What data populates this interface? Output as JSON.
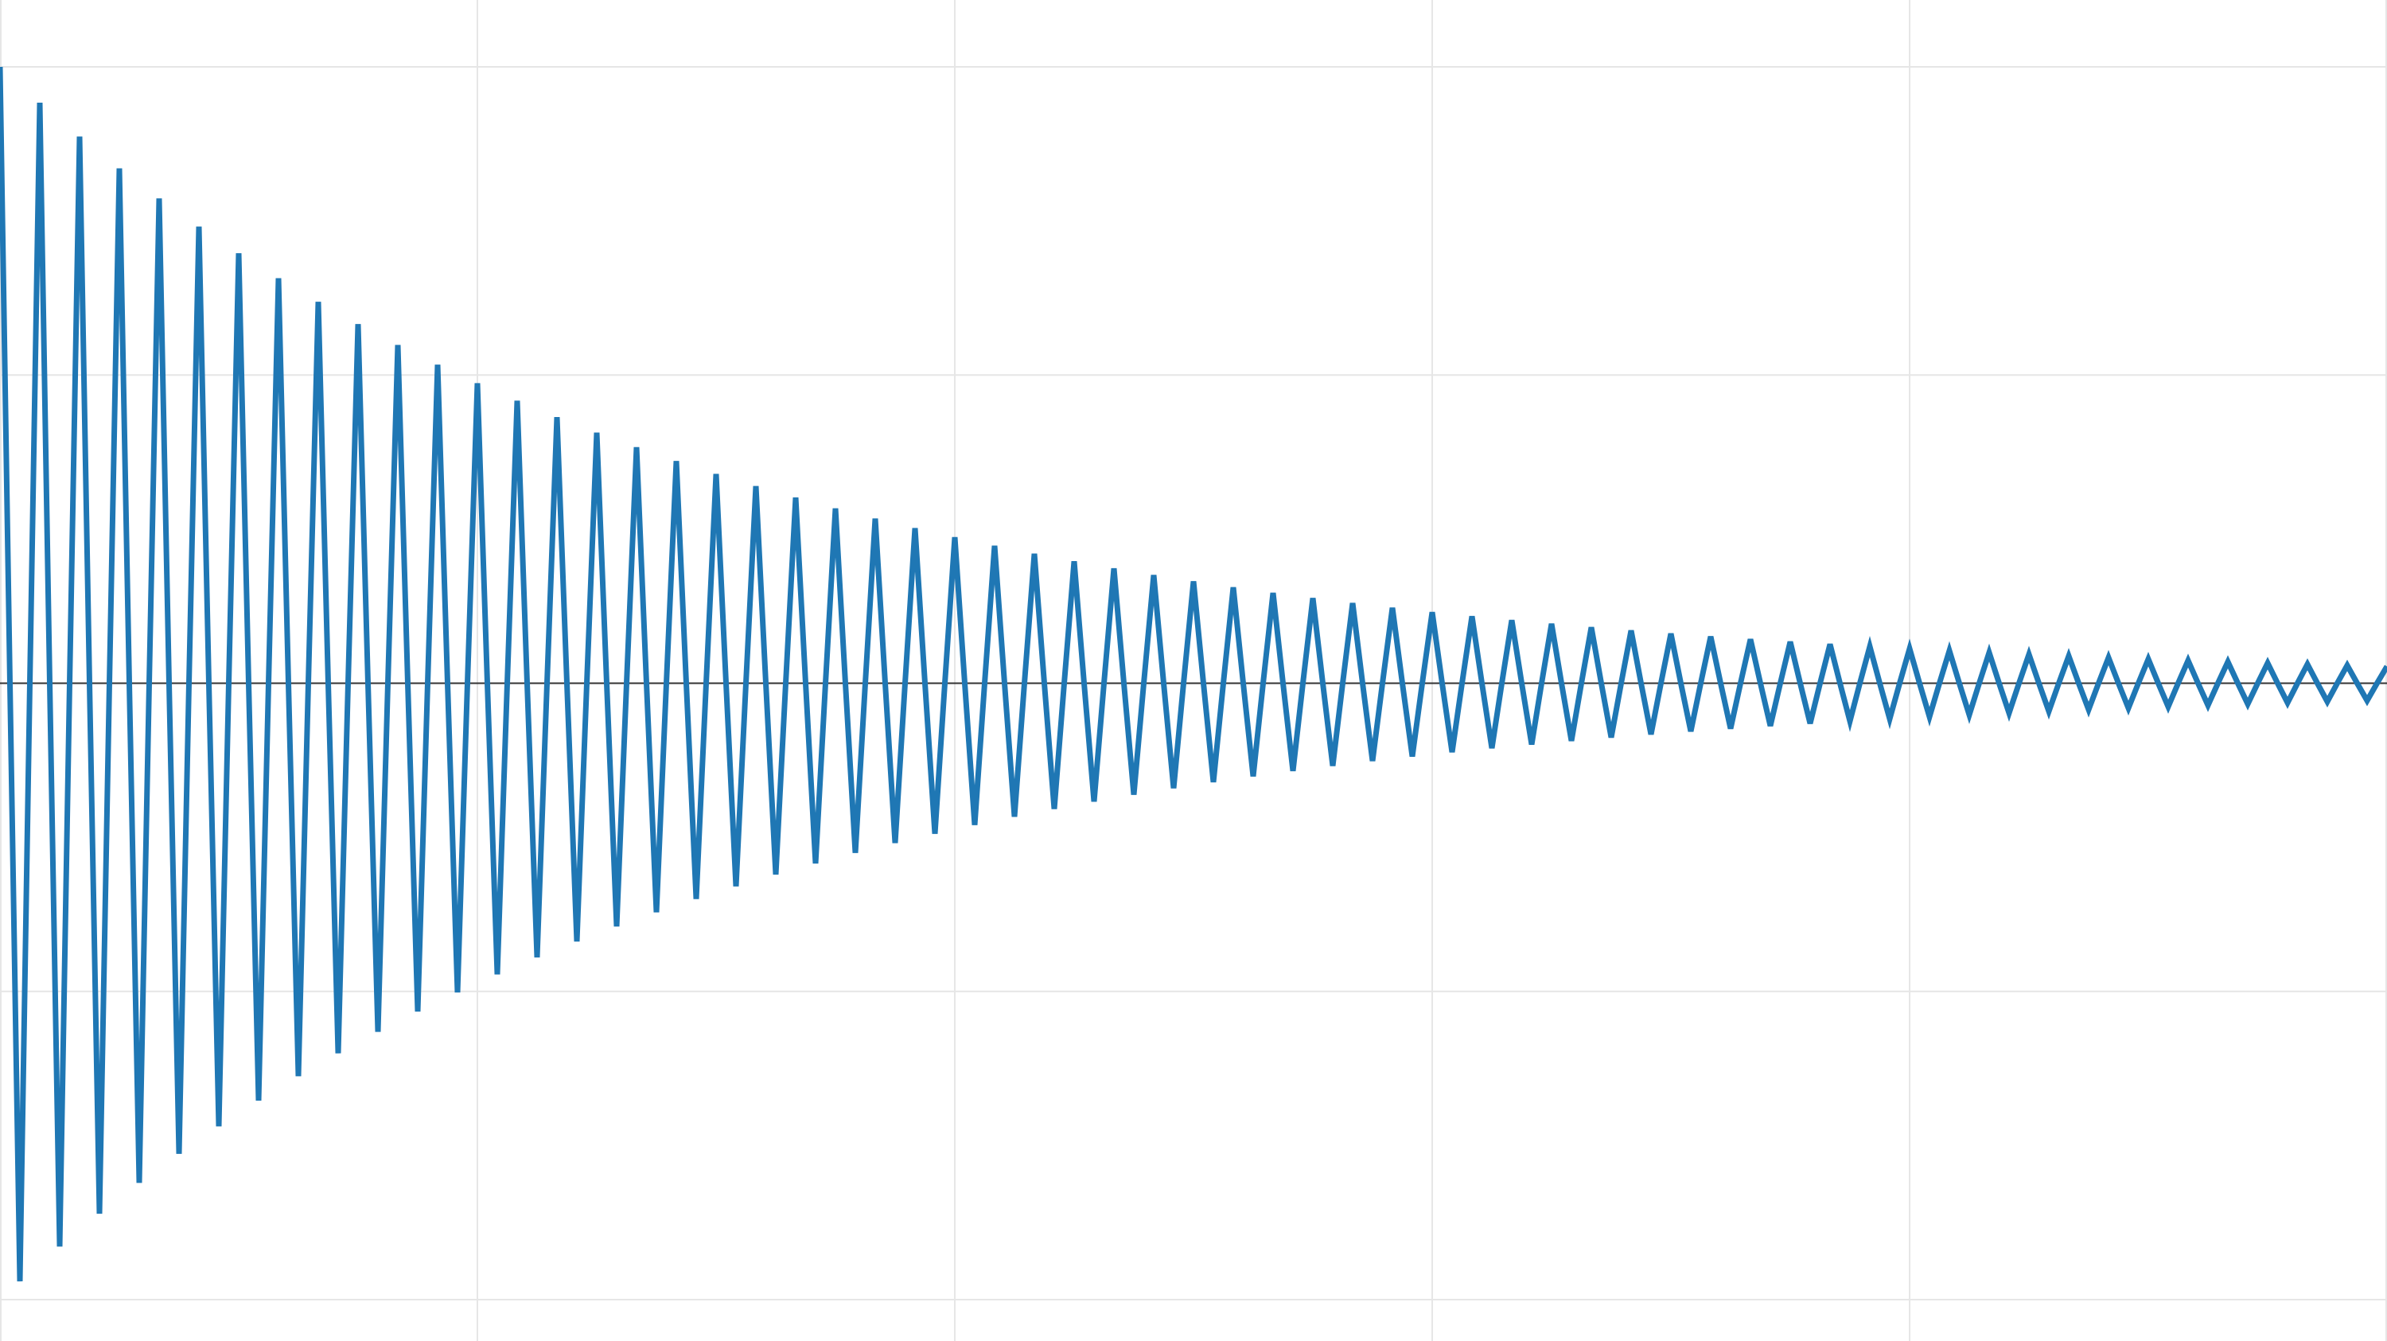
{
  "chart_data": {
    "type": "line",
    "title": "",
    "xlabel": "",
    "ylabel": "",
    "xlim": [
      0,
      60
    ],
    "ylim": [
      -1.0,
      1.0
    ],
    "x_gridlines": [
      0,
      12,
      24,
      36,
      48,
      60
    ],
    "y_gridlines": [
      -1.0,
      -0.5,
      0.0,
      0.5,
      1.0
    ],
    "zero_line": 0.0,
    "grid": true,
    "legend": "none",
    "colors": {
      "line": "#1f77b4",
      "grid": "#e6e6e6",
      "zero_line": "#333333",
      "background": "#ffffff"
    },
    "series": [
      {
        "function": "damped_cosine",
        "amplitude": 1.0,
        "decay_rate": 0.06,
        "period": 1.0,
        "x_start": 0,
        "x_end": 60,
        "sample_step": 0.25,
        "peaks": [
          {
            "x": 0,
            "y": 1.0
          },
          {
            "x": 5,
            "y": 0.74
          },
          {
            "x": 10,
            "y": 0.55
          },
          {
            "x": 15,
            "y": 0.41
          },
          {
            "x": 20,
            "y": 0.3
          },
          {
            "x": 25,
            "y": 0.22
          },
          {
            "x": 30,
            "y": 0.17
          },
          {
            "x": 35,
            "y": 0.12
          },
          {
            "x": 40,
            "y": 0.09
          },
          {
            "x": 45,
            "y": 0.07
          },
          {
            "x": 50,
            "y": 0.05
          },
          {
            "x": 55,
            "y": 0.04
          },
          {
            "x": 60,
            "y": 0.03
          }
        ]
      }
    ]
  }
}
